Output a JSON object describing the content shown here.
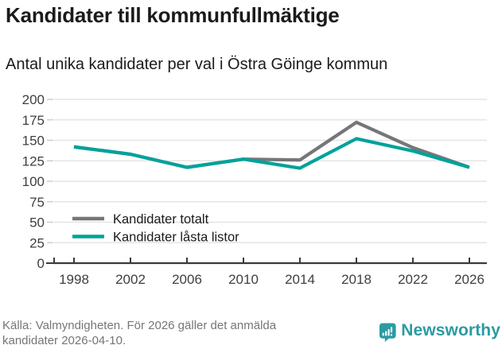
{
  "header": {
    "title": "Kandidater till kommunfullmäktige",
    "subtitle": "Antal unika kandidater per val i Östra Göinge kommun"
  },
  "chart_data": {
    "type": "line",
    "title": "Kandidater till kommunfullmäktige",
    "subtitle": "Antal unika kandidater per val i Östra Göinge kommun",
    "categories": [
      "1998",
      "2002",
      "2006",
      "2010",
      "2014",
      "2018",
      "2022",
      "2026"
    ],
    "series": [
      {
        "name": "Kandidater totalt",
        "color": "#76767a",
        "values": [
          142,
          133,
          117,
          127,
          126,
          172,
          141,
          117
        ]
      },
      {
        "name": "Kandidater låsta listor",
        "color": "#00a29a",
        "values": [
          142,
          133,
          117,
          127,
          116,
          152,
          137,
          117
        ]
      }
    ],
    "ylim": [
      0,
      200
    ],
    "yticks": [
      0,
      25,
      50,
      75,
      100,
      125,
      150,
      175,
      200
    ],
    "grid": true,
    "legend_position": "inside bottom-left"
  },
  "footer": {
    "lines": [
      "Källa: Valmyndigheten. För 2026 gäller det anmälda",
      "kandidater 2026-04-10."
    ]
  },
  "branding": {
    "name": "Newsworthy",
    "color": "#2c9aa3",
    "icon": "bar-chart-speech-bubble-icon"
  }
}
